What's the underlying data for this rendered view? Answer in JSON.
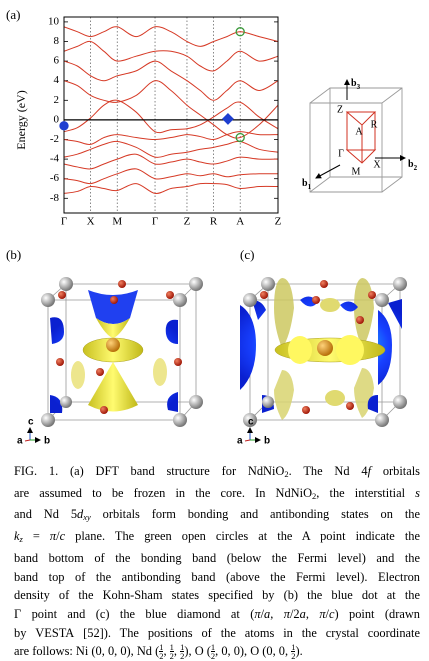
{
  "panels": {
    "a": "(a)",
    "b": "(b)",
    "c": "(c)"
  },
  "chart_data": {
    "type": "line",
    "y_label": "Energy (eV)",
    "x": [
      0,
      0.25,
      0.5,
      0.75,
      1,
      1.355,
      1.71,
      2.01,
      2.31,
      2.56,
      2.81,
      3.06,
      3.31,
      3.665,
      4.02
    ],
    "xlim": [
      0,
      4.02
    ],
    "xticks": [
      {
        "value": 0,
        "label": "Γ"
      },
      {
        "value": 0.5,
        "label": "X"
      },
      {
        "value": 1,
        "label": "M"
      },
      {
        "value": 1.71,
        "label": "Γ"
      },
      {
        "value": 2.31,
        "label": "Z"
      },
      {
        "value": 2.81,
        "label": "R"
      },
      {
        "value": 3.31,
        "label": "A"
      },
      {
        "value": 4.02,
        "label": "Z"
      }
    ],
    "ylim": [
      -9.5,
      10.5
    ],
    "yticks": [
      -8,
      -6,
      -4,
      -2,
      0,
      2,
      4,
      6,
      8,
      10
    ],
    "fermi_level": 0,
    "color": "#d63a26",
    "series": [
      {
        "values": [
          -7.5,
          -7.3,
          -6.8,
          -7,
          -7.2,
          -6.5,
          -7.5,
          -7,
          -6.8,
          -6.5,
          -6.5,
          -6.6,
          -7,
          -6.8,
          -6.8
        ]
      },
      {
        "values": [
          -6,
          -6.2,
          -6.5,
          -6,
          -5.5,
          -5,
          -6,
          -5.8,
          -5.5,
          -5.7,
          -5.5,
          -5.8,
          -5.6,
          -5.5,
          -5.5
        ]
      },
      {
        "values": [
          -4.5,
          -4.8,
          -5,
          -4.5,
          -4,
          -3.5,
          -4.5,
          -4.3,
          -4,
          -4.3,
          -4.5,
          -4.2,
          -3.8,
          -4,
          -4
        ]
      },
      {
        "values": [
          -3.8,
          -3.5,
          -3,
          -2.5,
          -2.2,
          -2.8,
          -3.8,
          -3.5,
          -3.3,
          -3,
          -2.8,
          -2.5,
          -2.2,
          -3,
          -3.3
        ]
      },
      {
        "values": [
          -2,
          -2.2,
          -2.5,
          -1.8,
          -1.5,
          -1.8,
          -2,
          -1.8,
          -1.5,
          -1.7,
          -2,
          -1.5,
          -1.2,
          -1.5,
          -1.5
        ]
      },
      {
        "values": [
          -1.2,
          -0.8,
          0.2,
          1.5,
          2,
          0.8,
          -1.2,
          -1,
          -0.9,
          -0.5,
          0.3,
          1.2,
          1.8,
          0.3,
          -0.9
        ]
      },
      {
        "values": [
          4,
          3.5,
          2.5,
          2,
          1.8,
          2.5,
          4,
          3,
          1.5,
          0.5,
          -0.5,
          -1.5,
          -1.8,
          -0.5,
          1.5
        ]
      },
      {
        "values": [
          6,
          5.5,
          4.5,
          4,
          4.5,
          5,
          6,
          5,
          4,
          3,
          2,
          3,
          4,
          3,
          4
        ]
      },
      {
        "values": [
          7,
          7.5,
          8,
          7,
          6,
          6.5,
          7,
          7,
          6.5,
          5.5,
          5,
          6,
          7,
          6,
          6.5
        ]
      },
      {
        "values": [
          9.5,
          9,
          8.5,
          9,
          9.5,
          8.5,
          9.5,
          9,
          8,
          7.5,
          8,
          8.5,
          9,
          8.5,
          8
        ]
      }
    ],
    "markers": [
      {
        "x": 0,
        "y": -0.6,
        "shape": "circle",
        "color": "#1f3fd0",
        "filled": true
      },
      {
        "x": 3.08,
        "y": 0.1,
        "shape": "diamond",
        "color": "#1f3fd0",
        "filled": true
      },
      {
        "x": 3.31,
        "y": 9.0,
        "shape": "circle",
        "color": "#3a9a3a",
        "filled": false
      },
      {
        "x": 3.31,
        "y": -1.8,
        "shape": "circle",
        "color": "#3a9a3a",
        "filled": false
      }
    ]
  },
  "brillouin_zone": {
    "vectors": [
      {
        "name": "b",
        "index": "3"
      },
      {
        "name": "b",
        "index": "2"
      },
      {
        "name": "b",
        "index": "1"
      }
    ],
    "points": [
      "Z",
      "R",
      "A",
      "Γ",
      "M",
      "X"
    ]
  },
  "crystal_axes": [
    {
      "c": "c",
      "a": "a",
      "b": "b"
    },
    {
      "c": "c",
      "a": "a",
      "b": "b"
    }
  ],
  "caption": {
    "lines": [
      [
        "FIG. 1. (a) DFT band structure for NdNiO",
        {
          "t": "2",
          "f": "sub"
        },
        ". The Nd 4",
        {
          "t": "f",
          "f": "i"
        },
        " orbitals"
      ],
      [
        "are assumed to be frozen in the core. In NdNiO",
        {
          "t": "2",
          "f": "sub"
        },
        ", the interstitial ",
        {
          "t": "s",
          "f": "i"
        }
      ],
      [
        "and Nd 5",
        {
          "t": "d",
          "f": "i"
        },
        {
          "t": "xy",
          "f": "isub"
        },
        " orbitals form bonding and antibonding states on the"
      ],
      [
        {
          "t": "k",
          "f": "i"
        },
        {
          "t": "z",
          "f": "isub"
        },
        " = ",
        {
          "t": "π",
          "f": "i"
        },
        "/",
        {
          "t": "c",
          "f": "i"
        },
        " plane. The green open circles at the A point indicate the"
      ],
      [
        "band bottom of the bonding band (below the Fermi level) and the"
      ],
      [
        "band top of the antibonding band (above the Fermi level). Electron"
      ],
      [
        "density of the Kohn-Sham states specified by (b) the blue dot at the"
      ],
      [
        "Γ point and (c) the blue diamond at (",
        {
          "t": "π",
          "f": "i"
        },
        "/",
        {
          "t": "a",
          "f": "i"
        },
        ", ",
        {
          "t": "π",
          "f": "i"
        },
        "/2",
        {
          "t": "a",
          "f": "i"
        },
        ", ",
        {
          "t": "π",
          "f": "i"
        },
        "/",
        {
          "t": "c",
          "f": "i"
        },
        ") point (drawn"
      ],
      [
        "by ",
        {
          "t": "VESTA",
          "f": "sc"
        },
        " [52]). The positions of the atoms in the crystal coordinate"
      ],
      [
        "are follows: Ni (0, 0, 0), Nd (",
        {
          "num": "1",
          "den": "2"
        },
        ", ",
        {
          "num": "1",
          "den": "2"
        },
        ", ",
        {
          "num": "1",
          "den": "2"
        },
        "), O (",
        {
          "num": "1",
          "den": "2"
        },
        ", 0, 0), O (0, 0, ",
        {
          "num": "1",
          "den": "2"
        },
        ")."
      ]
    ]
  }
}
